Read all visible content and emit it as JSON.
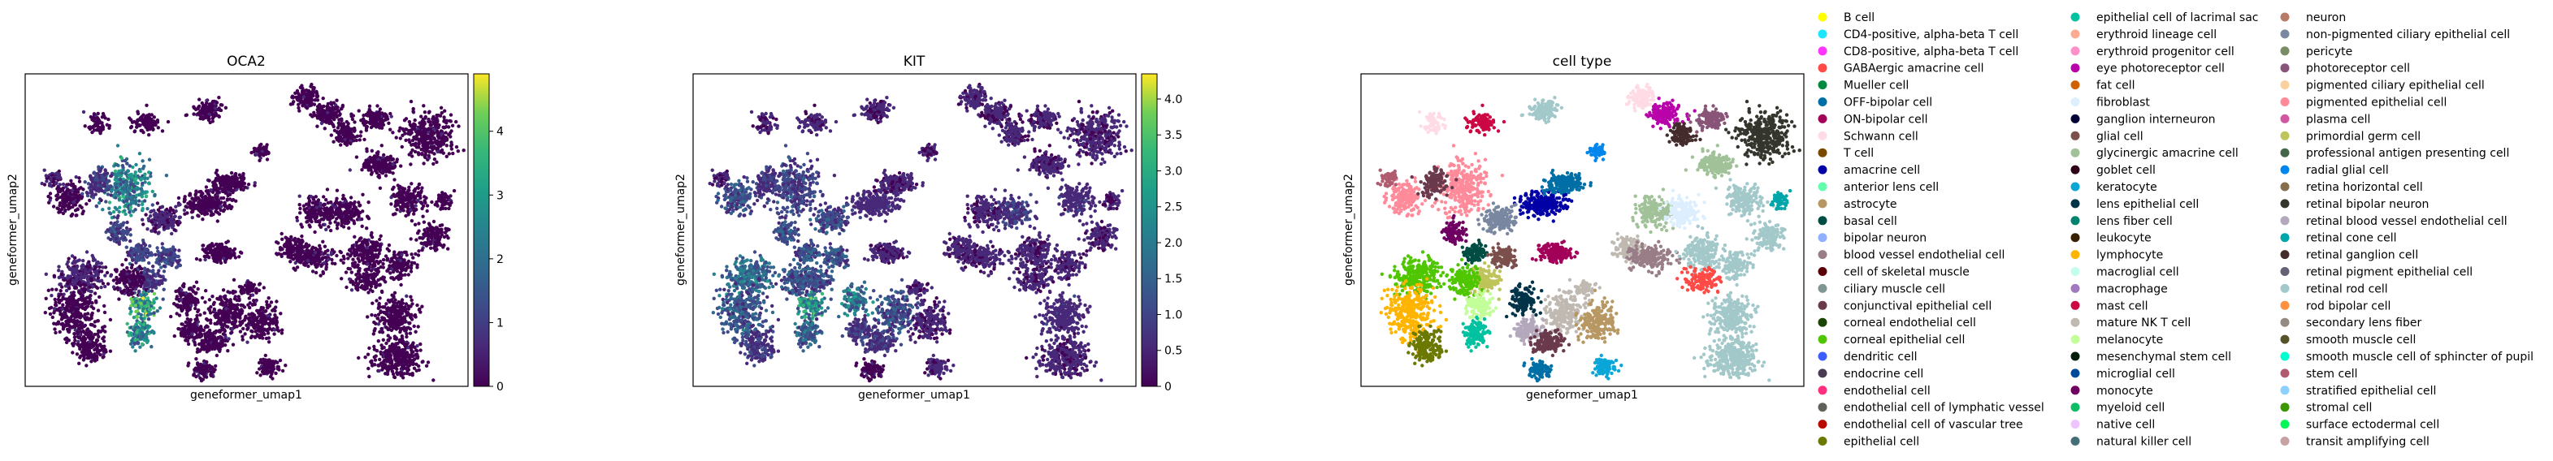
{
  "chart_data": [
    {
      "type": "scatter",
      "title": "OCA2",
      "xlabel": "geneformer_umap1",
      "ylabel": "geneformer_umap2",
      "colorbar": {
        "colormap": "viridis",
        "range": [
          0,
          4.9
        ],
        "ticks": [
          "0",
          "1",
          "2",
          "3",
          "4"
        ]
      },
      "grid": false
    },
    {
      "type": "scatter",
      "title": "KIT",
      "xlabel": "geneformer_umap1",
      "ylabel": "geneformer_umap2",
      "colorbar": {
        "colormap": "viridis",
        "range": [
          0,
          4.35
        ],
        "ticks": [
          "0",
          "0.5",
          "1.0",
          "1.5",
          "2.0",
          "2.5",
          "3.0",
          "3.5",
          "4.0"
        ]
      },
      "grid": false
    },
    {
      "type": "scatter",
      "title": "cell type",
      "xlabel": "geneformer_umap1",
      "ylabel": "geneformer_umap2",
      "legend_position": "right",
      "grid": false,
      "legend": [
        {
          "label": "B cell",
          "color": "#ffff00"
        },
        {
          "label": "CD4-positive, alpha-beta T cell",
          "color": "#1ce6ff"
        },
        {
          "label": "CD8-positive, alpha-beta T cell",
          "color": "#ff34ff"
        },
        {
          "label": "GABAergic amacrine cell",
          "color": "#ff4a46"
        },
        {
          "label": "Mueller cell",
          "color": "#008941"
        },
        {
          "label": "OFF-bipolar cell",
          "color": "#006fa6"
        },
        {
          "label": "ON-bipolar cell",
          "color": "#a30059"
        },
        {
          "label": "Schwann cell",
          "color": "#ffdbe5"
        },
        {
          "label": "T cell",
          "color": "#7a4900"
        },
        {
          "label": "amacrine cell",
          "color": "#0000a6"
        },
        {
          "label": "anterior lens cell",
          "color": "#63ffac"
        },
        {
          "label": "astrocyte",
          "color": "#b79762"
        },
        {
          "label": "basal cell",
          "color": "#004d43"
        },
        {
          "label": "bipolar neuron",
          "color": "#8fb0ff"
        },
        {
          "label": "blood vessel endothelial cell",
          "color": "#997d87"
        },
        {
          "label": "cell of skeletal muscle",
          "color": "#5a0007"
        },
        {
          "label": "ciliary muscle cell",
          "color": "#809693"
        },
        {
          "label": "conjunctival epithelial cell",
          "color": "#6a3a4c"
        },
        {
          "label": "corneal endothelial cell",
          "color": "#1b4400"
        },
        {
          "label": "corneal epithelial cell",
          "color": "#4fc601"
        },
        {
          "label": "dendritic cell",
          "color": "#3b5dff"
        },
        {
          "label": "endocrine cell",
          "color": "#4a3b53"
        },
        {
          "label": "endothelial cell",
          "color": "#ff2f80"
        },
        {
          "label": "endothelial cell of lymphatic vessel",
          "color": "#61615a"
        },
        {
          "label": "endothelial cell of vascular tree",
          "color": "#ba0900"
        },
        {
          "label": "epithelial cell",
          "color": "#6b7900"
        },
        {
          "label": "epithelial cell of lacrimal sac",
          "color": "#00c2a0"
        },
        {
          "label": "erythroid lineage cell",
          "color": "#ffaa92"
        },
        {
          "label": "erythroid progenitor cell",
          "color": "#ff90c9"
        },
        {
          "label": "eye photoreceptor cell",
          "color": "#b903aa"
        },
        {
          "label": "fat cell",
          "color": "#d16100"
        },
        {
          "label": "fibroblast",
          "color": "#ddefff"
        },
        {
          "label": "ganglion interneuron",
          "color": "#000035"
        },
        {
          "label": "glial cell",
          "color": "#7b4f4b"
        },
        {
          "label": "glycinergic amacrine cell",
          "color": "#a1c299"
        },
        {
          "label": "goblet cell",
          "color": "#300018"
        },
        {
          "label": "keratocyte",
          "color": "#0aa6d8"
        },
        {
          "label": "lens epithelial cell",
          "color": "#013349"
        },
        {
          "label": "lens fiber cell",
          "color": "#00846f"
        },
        {
          "label": "leukocyte",
          "color": "#372101"
        },
        {
          "label": "lymphocyte",
          "color": "#ffb500"
        },
        {
          "label": "macroglial cell",
          "color": "#c2ffed"
        },
        {
          "label": "macrophage",
          "color": "#a079bf"
        },
        {
          "label": "mast cell",
          "color": "#cc0744"
        },
        {
          "label": "mature NK T cell",
          "color": "#c0b9b2"
        },
        {
          "label": "melanocyte",
          "color": "#c2ff99"
        },
        {
          "label": "mesenchymal stem cell",
          "color": "#001e09"
        },
        {
          "label": "microglial cell",
          "color": "#00489c"
        },
        {
          "label": "monocyte",
          "color": "#6f0062"
        },
        {
          "label": "myeloid cell",
          "color": "#0cbd66"
        },
        {
          "label": "native cell",
          "color": "#eec3ff"
        },
        {
          "label": "natural killer cell",
          "color": "#456d75"
        },
        {
          "label": "neuron",
          "color": "#b77b68"
        },
        {
          "label": "non-pigmented ciliary epithelial cell",
          "color": "#7a87a1"
        },
        {
          "label": "pericyte",
          "color": "#788d66"
        },
        {
          "label": "photoreceptor cell",
          "color": "#885578"
        },
        {
          "label": "pigmented ciliary epithelial cell",
          "color": "#fad09f"
        },
        {
          "label": "pigmented epithelial cell",
          "color": "#ff8a9a"
        },
        {
          "label": "plasma cell",
          "color": "#d157a0"
        },
        {
          "label": "primordial germ cell",
          "color": "#bec459"
        },
        {
          "label": "professional antigen presenting cell",
          "color": "#456648"
        },
        {
          "label": "radial glial cell",
          "color": "#0086ed"
        },
        {
          "label": "retina horizontal cell",
          "color": "#886f4c"
        },
        {
          "label": "retinal bipolar neuron",
          "color": "#34362d"
        },
        {
          "label": "retinal blood vessel endothelial cell",
          "color": "#b4a8bd"
        },
        {
          "label": "retinal cone cell",
          "color": "#00a6aa"
        },
        {
          "label": "retinal ganglion cell",
          "color": "#452c2c"
        },
        {
          "label": "retinal pigment epithelial cell",
          "color": "#636375"
        },
        {
          "label": "retinal rod cell",
          "color": "#a3c8c9"
        },
        {
          "label": "rod bipolar cell",
          "color": "#ff913f"
        },
        {
          "label": "secondary lens fiber",
          "color": "#938a81"
        },
        {
          "label": "smooth muscle cell",
          "color": "#575329"
        },
        {
          "label": "smooth muscle cell of sphincter of pupil",
          "color": "#00fecf"
        },
        {
          "label": "stem cell",
          "color": "#b05b6f"
        },
        {
          "label": "stratified epithelial cell",
          "color": "#8cd0ff"
        },
        {
          "label": "stromal cell",
          "color": "#3b9700"
        },
        {
          "label": "surface ectodermal cell",
          "color": "#04f757"
        },
        {
          "label": "transit amplifying cell",
          "color": "#c8a1a1"
        }
      ]
    }
  ]
}
